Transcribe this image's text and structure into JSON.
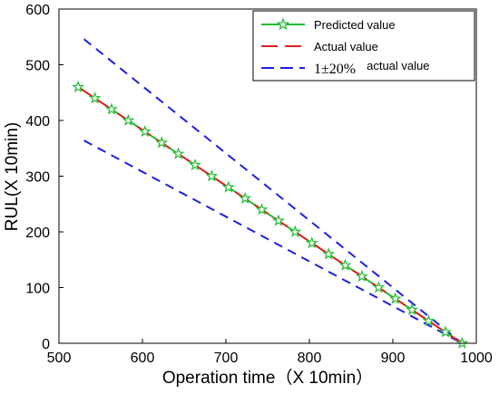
{
  "chart_data": {
    "type": "line",
    "title": "",
    "xlabel": "Operation time（X 10min）",
    "ylabel": "RUL(X 10min)",
    "xlim": [
      500,
      1000
    ],
    "ylim": [
      0,
      600
    ],
    "xticks": [
      500,
      600,
      700,
      800,
      900,
      1000
    ],
    "yticks": [
      0,
      100,
      200,
      300,
      400,
      500,
      600
    ],
    "xtick_labels": [
      "500",
      "600",
      "700",
      "800",
      "900",
      "1000"
    ],
    "ytick_labels": [
      "0",
      "100",
      "200",
      "300",
      "400",
      "500",
      "600"
    ],
    "grid": false,
    "legend_position": "top-right",
    "legend": {
      "predicted": "Predicted value",
      "actual": "Actual value",
      "band_main": "1±20%",
      "band_suffix": "actual value"
    },
    "series": [
      {
        "name": "Predicted value",
        "color": "#22bb33",
        "marker": "star",
        "x": [
          523,
          543,
          563,
          583,
          603,
          623,
          643,
          663,
          683,
          703,
          723,
          743,
          763,
          783,
          803,
          823,
          843,
          863,
          883,
          903,
          923,
          943,
          963,
          983
        ],
        "y": [
          460,
          440,
          420,
          400,
          380,
          360,
          340,
          320,
          300,
          280,
          260,
          240,
          220,
          200,
          180,
          160,
          140,
          120,
          100,
          80,
          60,
          40,
          20,
          0
        ]
      },
      {
        "name": "Actual value",
        "color": "#e02020",
        "style": "dashed",
        "x": [
          523,
          983
        ],
        "y": [
          460,
          0
        ]
      },
      {
        "name": "1±20% actual value",
        "color": "#1f1fe0",
        "style": "dashed",
        "x": [
          530,
          983
        ],
        "y": [
          546,
          0
        ]
      },
      {
        "name": "1±20% actual value",
        "color": "#1f1fe0",
        "style": "dashed",
        "x": [
          530,
          983
        ],
        "y": [
          364,
          0
        ]
      }
    ]
  }
}
